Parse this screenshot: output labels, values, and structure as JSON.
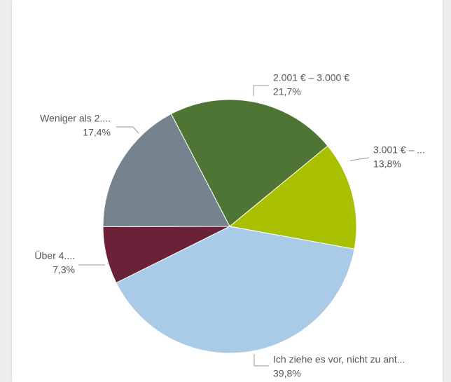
{
  "chart_data": {
    "type": "pie",
    "categories": [
      "2.001 € – 3.000 €",
      "3.001 € – ...",
      "Ich ziehe es vor, nicht zu ant...",
      "Über 4....",
      "Weniger als 2...."
    ],
    "values": [
      21.7,
      13.8,
      39.8,
      7.3,
      17.4
    ],
    "value_labels": [
      "21,7%",
      "13,8%",
      "39,8%",
      "7,3%",
      "17,4%"
    ],
    "colors": [
      "#4f7534",
      "#a9c000",
      "#a9cbe8",
      "#6b2238",
      "#76838f"
    ]
  }
}
